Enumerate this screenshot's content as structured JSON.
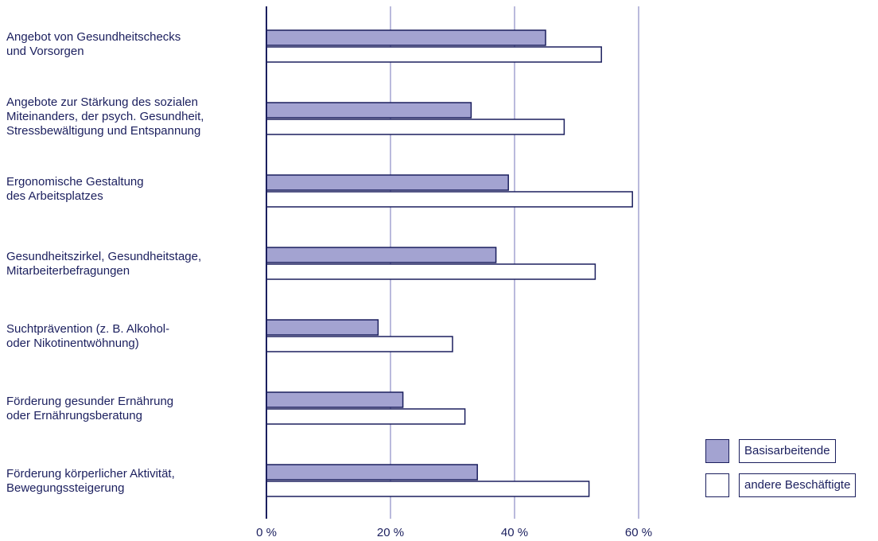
{
  "chart_data": {
    "type": "bar",
    "orientation": "horizontal",
    "categories": [
      "Angebot von Gesundheitschecks\nund Vorsorgen",
      "Angebote zur Stärkung des sozialen\nMiteinanders, der psych. Gesundheit,\nStressbewältigung und Entspannung",
      "Ergonomische Gestaltung\ndes Arbeitsplatzes",
      "Gesundheitszirkel, Gesundheitstage,\nMitarbeiterbefragungen",
      "Suchtprävention (z. B. Alkohol-\noder Nikotinentwöhnung)",
      "Förderung gesunder Ernährung\noder Ernährungsberatung",
      "Förderung körperlicher Aktivität,\nBewegungssteigerung"
    ],
    "series": [
      {
        "name": "Basisarbeitende",
        "color": "#a3a3d1",
        "values": [
          45,
          33,
          39,
          37,
          18,
          22,
          34
        ]
      },
      {
        "name": "andere Beschäftigte",
        "color": "#ffffff",
        "values": [
          54,
          48,
          59,
          53,
          30,
          32,
          52
        ]
      }
    ],
    "xlim": [
      0,
      60
    ],
    "xticks": [
      0,
      20,
      40,
      60
    ],
    "xtick_labels": [
      "0 %",
      "20 %",
      "40 %",
      "60 %"
    ],
    "grid": true,
    "legend_placement": "bottom-right",
    "colors": {
      "axis": "#1b1f5e",
      "grid": "#a3a3d1"
    }
  }
}
